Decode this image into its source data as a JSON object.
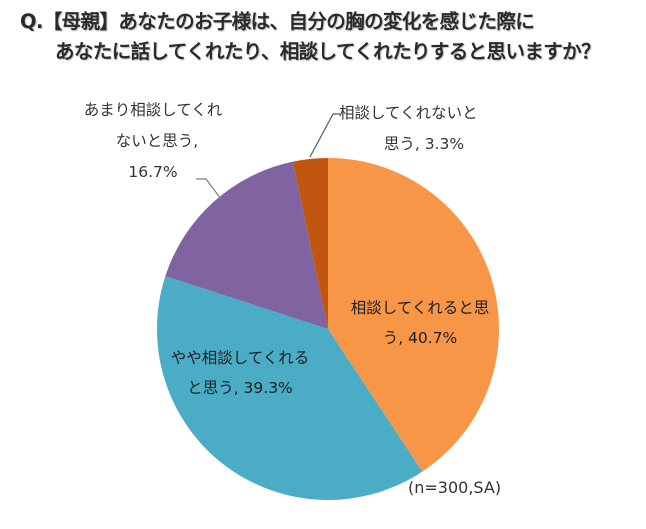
{
  "title": {
    "line1": "Q.【母親】あなたのお子様は、自分の胸の変化を感じた際に",
    "line2": "あなたに話してくれたり、相談してくれたりすると思いますか？"
  },
  "labels": {
    "s1": {
      "line1": "相談してくれると思",
      "line2": "う, 40.7%"
    },
    "s2": {
      "line1": "やや相談してくれる",
      "line2": "と思う, 39.3%"
    },
    "s3": {
      "line1": "あまり相談してくれ",
      "line2": "ないと思う,",
      "line3": "16.7%"
    },
    "s4": {
      "line1": "相談してくれないと",
      "line2": "思う, 3.3%"
    }
  },
  "note": "(n=300,SA)",
  "chart_data": {
    "type": "pie",
    "title": "Q.【母親】あなたのお子様は、自分の胸の変化を感じた際にあなたに話してくれたり、相談してくれたりすると思いますか？",
    "categories": [
      "相談してくれると思う",
      "やや相談してくれると思う",
      "あまり相談してくれないと思う",
      "相談してくれないと思う"
    ],
    "values": [
      40.7,
      39.3,
      16.7,
      3.3
    ],
    "unit": "%",
    "colors": [
      "#F79646",
      "#4BACC6",
      "#8064A2",
      "#C0560F"
    ],
    "start_angle": "12 o'clock",
    "direction": "clockwise",
    "sample_note": "(n=300,SA)",
    "legend": "none (data labels)"
  }
}
